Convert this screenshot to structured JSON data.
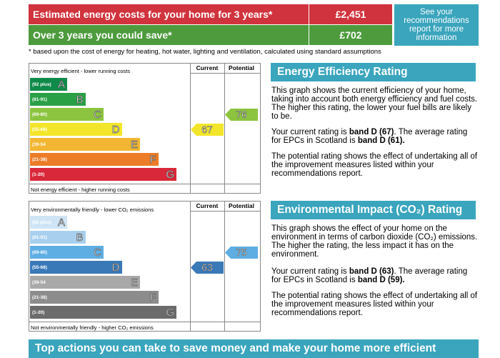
{
  "costs": {
    "estimated_label": "Estimated energy costs for your home for 3 years*",
    "estimated_value": "£2,451",
    "save_label": "Over 3 years you could save*",
    "save_value": "£702",
    "info_text": "See your recommendations report for more information",
    "footnote": "* based upon the cost of energy for heating, hot water, lighting and ventilation, calculated using standard assumptions",
    "colors": {
      "cost_bar": "#d0333d",
      "save_bar": "#4d9b3d",
      "info": "#3aa5bd"
    }
  },
  "energy_chart": {
    "top_label": "Very energy efficient - lower running costs",
    "bottom_label": "Not energy efficient - higher running costs",
    "current_heading": "Current",
    "potential_heading": "Potential",
    "bands": [
      {
        "range": "(92 plus)",
        "letter": "A",
        "color": "#0f8a4a"
      },
      {
        "range": "(81-91)",
        "letter": "B",
        "color": "#2aa046"
      },
      {
        "range": "(69-80)",
        "letter": "C",
        "color": "#8cc43f"
      },
      {
        "range": "(55-68)",
        "letter": "D",
        "color": "#f3e62a"
      },
      {
        "range": "(39-54",
        "letter": "E",
        "color": "#f2b632"
      },
      {
        "range": "(21-38)",
        "letter": "F",
        "color": "#ec7c27"
      },
      {
        "range": "(1-20)",
        "letter": "G",
        "color": "#d9283a"
      }
    ],
    "current": {
      "value": "67",
      "band": "D",
      "color": "#f3e62a"
    },
    "potential": {
      "value": "76",
      "band": "C",
      "color": "#8cc43f"
    }
  },
  "environment_chart": {
    "top_label": "Very environmentally friendly - lower CO₂ emissions",
    "bottom_label": "Not environmentally friendly - higher CO₂ emissions",
    "current_heading": "Current",
    "potential_heading": "Potential",
    "bands": [
      {
        "range": "(92 plus)",
        "letter": "A",
        "color": "#cfe5f5"
      },
      {
        "range": "(81-91)",
        "letter": "B",
        "color": "#a8d0ee"
      },
      {
        "range": "(69-80)",
        "letter": "C",
        "color": "#5eaee3"
      },
      {
        "range": "(55-68)",
        "letter": "D",
        "color": "#3a79b8"
      },
      {
        "range": "(39-54",
        "letter": "E",
        "color": "#a9a9a9"
      },
      {
        "range": "(21-38)",
        "letter": "F",
        "color": "#8c8c8c"
      },
      {
        "range": "(1-20)",
        "letter": "G",
        "color": "#6b6b6b"
      }
    ],
    "current": {
      "value": "63",
      "band": "D",
      "color": "#3a79b8"
    },
    "potential": {
      "value": "75",
      "band": "C",
      "color": "#5eaee3"
    }
  },
  "efficiency_panel": {
    "title": "Energy Efficiency Rating",
    "para1": "This graph shows the current efficiency of your home, taking into account both energy efficiency and fuel costs. The higher this rating, the lower your fuel bills are likely to be.",
    "para2_prefix": "Your current rating is ",
    "para2_bold1": "band D (67)",
    "para2_mid": ". The average rating for EPCs in Scotland is ",
    "para2_bold2": "band D (61).",
    "para3": "The potential rating shows the effect of undertaking all of the improvement measures listed within your recommendations report."
  },
  "environment_panel": {
    "title": "Environmental Impact (CO₂) Rating",
    "para1": "This graph shows the effect of your home on the environment in terms of carbon dioxide (CO₂) emissions. The higher the rating, the less impact it has on the environment.",
    "para2_prefix": "Your current rating is ",
    "para2_bold1": "band D (63)",
    "para2_mid": ". The average rating for EPCs in Scotland is ",
    "para2_bold2": "band D (59).",
    "para3": "The potential rating shows the effect of undertaking all of the improvement measures listed within your recommendations report."
  },
  "bottom_banner": "Top actions you can take to save money and make your home more efficient"
}
